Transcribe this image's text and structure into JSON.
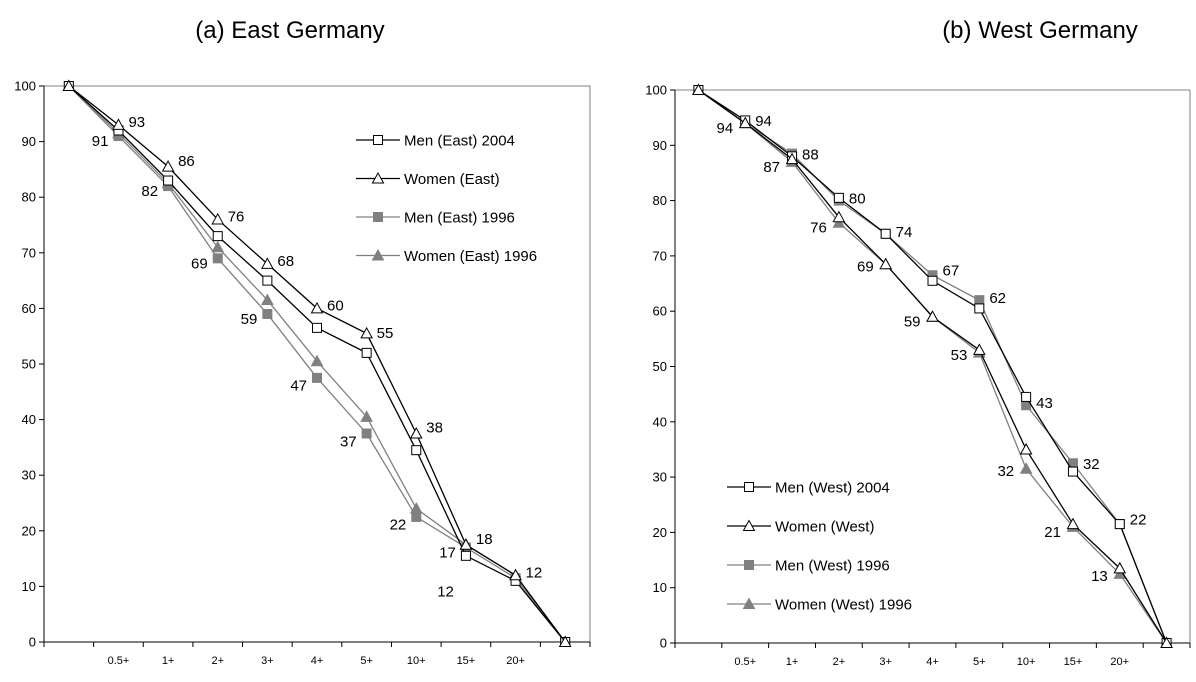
{
  "chart_data": [
    {
      "type": "line",
      "title": "(a) East Germany",
      "ylim": [
        0,
        100
      ],
      "yticks": [
        "0",
        "10",
        "20",
        "30",
        "40",
        "50",
        "60",
        "70",
        "80",
        "90",
        "100"
      ],
      "categories": [
        "",
        "0.5+",
        "1+",
        "2+",
        "3+",
        "4+",
        "5+",
        "10+",
        "15+",
        "20+",
        ""
      ],
      "legend_position": "top-right",
      "series": [
        {
          "name": "Men (East) 2004",
          "color": "#000000",
          "marker": "square-open",
          "values": [
            100,
            92,
            83,
            73,
            65,
            56.5,
            52,
            34.5,
            15.5,
            11,
            0
          ]
        },
        {
          "name": "Women (East)",
          "color": "#000000",
          "marker": "triangle-open",
          "values": [
            100,
            93,
            85.5,
            76,
            68,
            60,
            55.5,
            37.5,
            17.5,
            12,
            0
          ]
        },
        {
          "name": "Men (East) 1996",
          "color": "#808080",
          "marker": "square-filled",
          "values": [
            100,
            91,
            82,
            69,
            59,
            47.5,
            37.5,
            22.5,
            17,
            11.5,
            0
          ]
        },
        {
          "name": "Women (East) 1996",
          "color": "#808080",
          "marker": "triangle-filled",
          "values": [
            100,
            91.5,
            82.5,
            71,
            61.5,
            50.5,
            40.5,
            24,
            17.5,
            12,
            0
          ]
        }
      ],
      "data_labels": [
        {
          "text": "91",
          "category": "0.5+",
          "value": 91,
          "side": "left"
        },
        {
          "text": "93",
          "category": "0.5+",
          "value": 93,
          "side": "right"
        },
        {
          "text": "82",
          "category": "1+",
          "value": 82,
          "side": "left"
        },
        {
          "text": "86",
          "category": "1+",
          "value": 86,
          "side": "right"
        },
        {
          "text": "69",
          "category": "2+",
          "value": 69,
          "side": "left"
        },
        {
          "text": "76",
          "category": "2+",
          "value": 76,
          "side": "right"
        },
        {
          "text": "59",
          "category": "3+",
          "value": 59,
          "side": "left"
        },
        {
          "text": "68",
          "category": "3+",
          "value": 68,
          "side": "right"
        },
        {
          "text": "47",
          "category": "4+",
          "value": 47,
          "side": "left"
        },
        {
          "text": "60",
          "category": "4+",
          "value": 60,
          "side": "right"
        },
        {
          "text": "37",
          "category": "5+",
          "value": 37,
          "side": "left"
        },
        {
          "text": "55",
          "category": "5+",
          "value": 55,
          "side": "right"
        },
        {
          "text": "22",
          "category": "10+",
          "value": 22,
          "side": "left"
        },
        {
          "text": "38",
          "category": "10+",
          "value": 38,
          "side": "right"
        },
        {
          "text": "17",
          "category": "15+",
          "value": 17,
          "side": "left"
        },
        {
          "text": "18",
          "category": "15+",
          "value": 18,
          "side": "right"
        },
        {
          "text": "12",
          "category": "15+",
          "value": 12,
          "side": "right-low"
        },
        {
          "text": "12",
          "category": "20+",
          "value": 12,
          "side": "right"
        }
      ]
    },
    {
      "type": "line",
      "title": "(b) West Germany",
      "ylim": [
        0,
        100
      ],
      "yticks": [
        "0",
        "10",
        "20",
        "30",
        "40",
        "50",
        "60",
        "70",
        "80",
        "90",
        "100"
      ],
      "categories": [
        "",
        "0.5+",
        "1+",
        "2+",
        "3+",
        "4+",
        "5+",
        "10+",
        "15+",
        "20+",
        ""
      ],
      "legend_position": "bottom-left",
      "series": [
        {
          "name": "Men (West) 2004",
          "color": "#000000",
          "marker": "square-open",
          "values": [
            100,
            94.5,
            88,
            80.5,
            74,
            65.5,
            60.5,
            44.5,
            31,
            21.5,
            0
          ]
        },
        {
          "name": "Women (West)",
          "color": "#000000",
          "marker": "triangle-open",
          "values": [
            100,
            94,
            87.5,
            77,
            68.5,
            59,
            53,
            35,
            21.5,
            13.5,
            0
          ]
        },
        {
          "name": "Men (West) 1996",
          "color": "#808080",
          "marker": "square-filled",
          "values": [
            100,
            94,
            88.5,
            80,
            74,
            66.5,
            62,
            43,
            32.5,
            21.5,
            0
          ]
        },
        {
          "name": "Women (West) 1996",
          "color": "#808080",
          "marker": "triangle-filled",
          "values": [
            100,
            94,
            87,
            76,
            68.5,
            59,
            52.5,
            31.5,
            21,
            12.5,
            0
          ]
        }
      ],
      "data_labels": [
        {
          "text": "94",
          "category": "0.5+",
          "value": 94,
          "side": "left"
        },
        {
          "text": "94",
          "category": "0.5+",
          "value": 94,
          "side": "right"
        },
        {
          "text": "87",
          "category": "1+",
          "value": 87,
          "side": "left"
        },
        {
          "text": "88",
          "category": "1+",
          "value": 88,
          "side": "right"
        },
        {
          "text": "76",
          "category": "2+",
          "value": 76,
          "side": "left"
        },
        {
          "text": "80",
          "category": "2+",
          "value": 80,
          "side": "right"
        },
        {
          "text": "69",
          "category": "3+",
          "value": 69,
          "side": "left"
        },
        {
          "text": "74",
          "category": "3+",
          "value": 74,
          "side": "right"
        },
        {
          "text": "59",
          "category": "4+",
          "value": 59,
          "side": "left"
        },
        {
          "text": "67",
          "category": "4+",
          "value": 67,
          "side": "right"
        },
        {
          "text": "53",
          "category": "5+",
          "value": 53,
          "side": "left"
        },
        {
          "text": "62",
          "category": "5+",
          "value": 62,
          "side": "right"
        },
        {
          "text": "32",
          "category": "10+",
          "value": 32,
          "side": "left"
        },
        {
          "text": "43",
          "category": "10+",
          "value": 43,
          "side": "right"
        },
        {
          "text": "21",
          "category": "15+",
          "value": 21,
          "side": "left"
        },
        {
          "text": "32",
          "category": "15+",
          "value": 32,
          "side": "right"
        },
        {
          "text": "13",
          "category": "20+",
          "value": 13,
          "side": "left"
        },
        {
          "text": "22",
          "category": "20+",
          "value": 22,
          "side": "right"
        }
      ]
    }
  ]
}
